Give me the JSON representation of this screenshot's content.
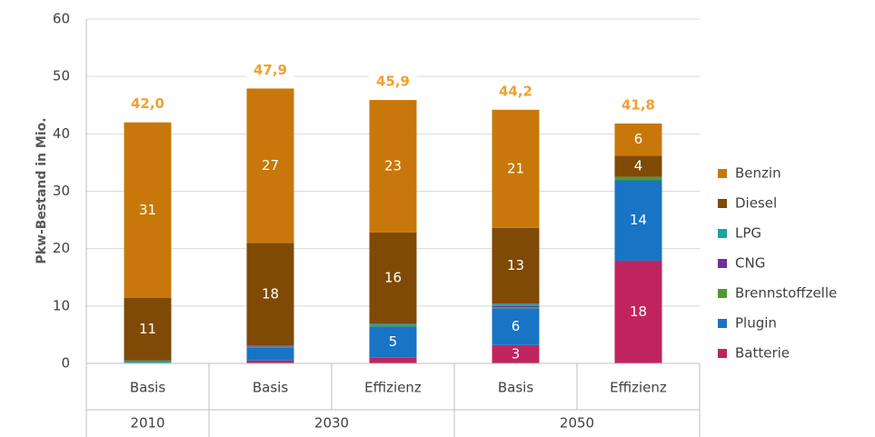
{
  "chart_data": {
    "type": "stacked_bar",
    "y_label": "Pkw-Bestand in Mio.",
    "categories": [
      "Basis",
      "Basis",
      "Effizienz",
      "Basis",
      "Effizienz"
    ],
    "groups": [
      {
        "label": "2010",
        "span": 1
      },
      {
        "label": "2030",
        "span": 2
      },
      {
        "label": "2050",
        "span": 2
      }
    ],
    "series": [
      {
        "name": "Batterie",
        "color": "#c0245e",
        "values": [
          0,
          0.5,
          1.0,
          3.2,
          17.9
        ],
        "value_labels": [
          null,
          null,
          null,
          "3",
          "18"
        ]
      },
      {
        "name": "Plugin",
        "color": "#1874c5",
        "values": [
          0.1,
          2.3,
          5.4,
          6.4,
          14.0
        ],
        "value_labels": [
          null,
          null,
          "5",
          "6",
          "14"
        ]
      },
      {
        "name": "Brennstoffzelle",
        "color": "#4e9a2e",
        "values": [
          0,
          0.1,
          0.2,
          0.2,
          0.4
        ],
        "value_labels": [
          null,
          null,
          null,
          null,
          null
        ]
      },
      {
        "name": "CNG",
        "color": "#7030a0",
        "values": [
          0,
          0.1,
          0.1,
          0.2,
          0.1
        ],
        "value_labels": [
          null,
          null,
          null,
          null,
          null
        ]
      },
      {
        "name": "LPG",
        "color": "#1aa3a0",
        "values": [
          0.4,
          0.1,
          0.2,
          0.4,
          0.1
        ],
        "value_labels": [
          null,
          null,
          null,
          null,
          null
        ]
      },
      {
        "name": "Diesel",
        "color": "#7f4a05",
        "values": [
          10.9,
          17.9,
          15.9,
          13.2,
          3.7
        ],
        "value_labels": [
          "11",
          "18",
          "16",
          "13",
          "4"
        ]
      },
      {
        "name": "Benzin",
        "color": "#c8780a",
        "values": [
          30.6,
          26.9,
          23.1,
          20.6,
          5.6
        ],
        "value_labels": [
          "31",
          "27",
          "23",
          "21",
          "6"
        ]
      }
    ],
    "totals": [
      42.0,
      47.9,
      45.9,
      44.2,
      41.8
    ],
    "total_labels": [
      "42,0",
      "47,9",
      "45,9",
      "44,2",
      "41,8"
    ],
    "total_color": "#f0a030",
    "ylim": [
      0,
      60
    ],
    "yticks": [
      0,
      10,
      20,
      30,
      40,
      50,
      60
    ],
    "grid": true,
    "legend": "right"
  }
}
